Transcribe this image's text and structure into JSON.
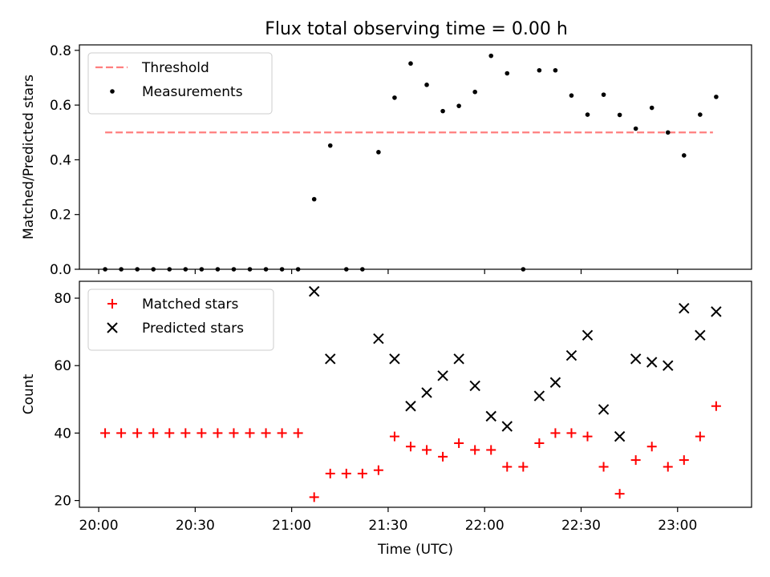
{
  "title": "Flux total observing time = 0.00 h",
  "chart_data": [
    {
      "type": "scatter",
      "ylabel": "Matched/Predicted stars",
      "xlabel": "",
      "xlim": [
        "19:54",
        "23:23"
      ],
      "ylim": [
        0,
        0.82
      ],
      "yticks": [
        "0.0",
        "0.2",
        "0.4",
        "0.6",
        "0.8"
      ],
      "legend_position": "top-left",
      "threshold": {
        "name": "Threshold",
        "value": 0.5,
        "x_start": "20:02",
        "x_end": "23:11",
        "color": "#ff7f7f"
      },
      "series": [
        {
          "name": "Measurements",
          "color": "#000000",
          "marker": "dot",
          "x": [
            "20:02",
            "20:07",
            "20:12",
            "20:17",
            "20:22",
            "20:27",
            "20:32",
            "20:37",
            "20:42",
            "20:47",
            "20:52",
            "20:57",
            "21:02",
            "21:07",
            "21:12",
            "21:17",
            "21:22",
            "21:27",
            "21:32",
            "21:37",
            "21:42",
            "21:47",
            "21:52",
            "21:57",
            "22:02",
            "22:07",
            "22:12",
            "22:17",
            "22:22",
            "22:27",
            "22:32",
            "22:37",
            "22:42",
            "22:47",
            "22:52",
            "22:57",
            "23:02",
            "23:07",
            "23:12"
          ],
          "y": [
            0,
            0,
            0,
            0,
            0,
            0,
            0,
            0,
            0,
            0,
            0,
            0,
            0,
            0.256,
            0.452,
            0,
            0,
            0.428,
            0.627,
            0.752,
            0.674,
            0.578,
            0.597,
            0.648,
            0.78,
            0.716,
            0,
            0.727,
            0.727,
            0.635,
            0.565,
            0.638,
            0.564,
            0.514,
            0.59,
            0.5,
            0.416,
            0.565,
            0.63
          ]
        }
      ]
    },
    {
      "type": "scatter",
      "ylabel": "Count",
      "xlabel": "Time (UTC)",
      "xlim": [
        "19:54",
        "23:23"
      ],
      "ylim": [
        18,
        85
      ],
      "yticks": [
        "20",
        "40",
        "60",
        "80"
      ],
      "xticks": [
        "20:00",
        "20:30",
        "21:00",
        "21:30",
        "22:00",
        "22:30",
        "23:00"
      ],
      "legend_position": "top-left",
      "series": [
        {
          "name": "Matched stars",
          "color": "#ff0000",
          "marker": "plus",
          "x": [
            "20:02",
            "20:07",
            "20:12",
            "20:17",
            "20:22",
            "20:27",
            "20:32",
            "20:37",
            "20:42",
            "20:47",
            "20:52",
            "20:57",
            "21:02",
            "21:07",
            "21:12",
            "21:17",
            "21:22",
            "21:27",
            "21:32",
            "21:37",
            "21:42",
            "21:47",
            "21:52",
            "21:57",
            "22:02",
            "22:07",
            "22:12",
            "22:17",
            "22:22",
            "22:27",
            "22:32",
            "22:37",
            "22:42",
            "22:47",
            "22:52",
            "22:57",
            "23:02",
            "23:07",
            "23:12"
          ],
          "y": [
            40,
            40,
            40,
            40,
            40,
            40,
            40,
            40,
            40,
            40,
            40,
            40,
            40,
            21,
            28,
            28,
            28,
            29,
            39,
            36,
            35,
            33,
            37,
            35,
            35,
            30,
            30,
            37,
            40,
            40,
            39,
            30,
            22,
            32,
            36,
            30,
            32,
            39,
            48
          ]
        },
        {
          "name": "Predicted stars",
          "color": "#000000",
          "marker": "x",
          "x": [
            "21:07",
            "21:12",
            "21:27",
            "21:32",
            "21:37",
            "21:42",
            "21:47",
            "21:52",
            "21:57",
            "22:02",
            "22:07",
            "22:17",
            "22:22",
            "22:27",
            "22:32",
            "22:37",
            "22:42",
            "22:47",
            "22:52",
            "22:57",
            "23:02",
            "23:07",
            "23:12"
          ],
          "y": [
            82,
            62,
            68,
            62,
            48,
            52,
            57,
            62,
            54,
            45,
            42,
            51,
            55,
            63,
            69,
            47,
            39,
            62,
            61,
            60,
            77,
            69,
            76
          ]
        }
      ]
    }
  ]
}
